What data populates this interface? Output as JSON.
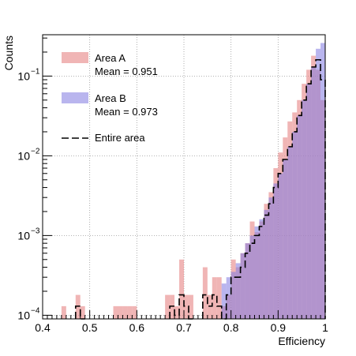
{
  "chart_data": {
    "type": "histogram",
    "xlabel": "Efficiency",
    "ylabel": "Counts",
    "xlim": [
      0.4,
      1.0
    ],
    "ylim": [
      9e-05,
      0.33
    ],
    "yscale": "log",
    "grid": true,
    "legend_position": "top-left",
    "bin_width": 0.01,
    "x_ticks": [
      "0.4",
      "0.5",
      "0.6",
      "0.7",
      "0.8",
      "0.9",
      "1"
    ],
    "y_ticks": [
      {
        "value": 0.0001,
        "base": "10",
        "exp": "−4"
      },
      {
        "value": 0.001,
        "base": "10",
        "exp": "−3"
      },
      {
        "value": 0.01,
        "base": "10",
        "exp": "−2"
      },
      {
        "value": 0.1,
        "base": "10",
        "exp": "−1"
      }
    ],
    "series": [
      {
        "name": "Area A",
        "mean_label": "Mean = 0.951",
        "color": "#e88e8e",
        "opacity": 0.65,
        "style": "filled",
        "bins": [
          [
            0.44,
            0.00013
          ],
          [
            0.47,
            0.00018
          ],
          [
            0.48,
            0.00013
          ],
          [
            0.55,
            0.00013
          ],
          [
            0.56,
            0.00013
          ],
          [
            0.57,
            0.00013
          ],
          [
            0.58,
            0.00013
          ],
          [
            0.59,
            0.00013
          ],
          [
            0.66,
            0.00018
          ],
          [
            0.67,
            0.00018
          ],
          [
            0.68,
            0.00013
          ],
          [
            0.69,
            0.0005
          ],
          [
            0.7,
            0.00018
          ],
          [
            0.71,
            0.00018
          ],
          [
            0.74,
            0.0004
          ],
          [
            0.75,
            0.00018
          ],
          [
            0.76,
            0.0003
          ],
          [
            0.77,
            0.0003
          ],
          [
            0.78,
            0.00013
          ],
          [
            0.79,
            0.00018
          ],
          [
            0.8,
            0.0005
          ],
          [
            0.81,
            0.0004
          ],
          [
            0.82,
            0.0006
          ],
          [
            0.83,
            0.0008
          ],
          [
            0.84,
            0.0015
          ],
          [
            0.85,
            0.0011
          ],
          [
            0.86,
            0.0015
          ],
          [
            0.87,
            0.0025
          ],
          [
            0.88,
            0.0035
          ],
          [
            0.89,
            0.007
          ],
          [
            0.9,
            0.011
          ],
          [
            0.91,
            0.017
          ],
          [
            0.92,
            0.027
          ],
          [
            0.93,
            0.035
          ],
          [
            0.94,
            0.05
          ],
          [
            0.95,
            0.08
          ],
          [
            0.96,
            0.12
          ],
          [
            0.97,
            0.18
          ],
          [
            0.98,
            0.12
          ],
          [
            0.99,
            0.05
          ]
        ]
      },
      {
        "name": "Area B",
        "mean_label": "Mean = 0.973",
        "color": "#7f78e0",
        "opacity": 0.55,
        "style": "filled",
        "bins": [
          [
            0.78,
            0.00025
          ],
          [
            0.79,
            0.0003
          ],
          [
            0.8,
            0.00035
          ],
          [
            0.81,
            0.00045
          ],
          [
            0.82,
            0.0006
          ],
          [
            0.83,
            0.0008
          ],
          [
            0.84,
            0.001
          ],
          [
            0.85,
            0.0013
          ],
          [
            0.86,
            0.0016
          ],
          [
            0.87,
            0.0021
          ],
          [
            0.88,
            0.003
          ],
          [
            0.89,
            0.0045
          ],
          [
            0.9,
            0.006
          ],
          [
            0.91,
            0.009
          ],
          [
            0.92,
            0.013
          ],
          [
            0.93,
            0.02
          ],
          [
            0.94,
            0.032
          ],
          [
            0.95,
            0.05
          ],
          [
            0.96,
            0.08
          ],
          [
            0.97,
            0.13
          ],
          [
            0.98,
            0.22
          ],
          [
            0.99,
            0.26
          ]
        ]
      },
      {
        "name": "Entire area",
        "color": "#000000",
        "style": "dashed-step",
        "bins": [
          [
            0.47,
            0.00013
          ],
          [
            0.48,
            9e-05
          ],
          [
            0.67,
            0.00013
          ],
          [
            0.68,
            0.0001
          ],
          [
            0.69,
            0.00018
          ],
          [
            0.7,
            0.00013
          ],
          [
            0.71,
            9e-05
          ],
          [
            0.74,
            0.00018
          ],
          [
            0.75,
            0.00013
          ],
          [
            0.76,
            0.00018
          ],
          [
            0.77,
            0.00013
          ],
          [
            0.78,
            9e-05
          ],
          [
            0.79,
            0.00018
          ],
          [
            0.8,
            0.0003
          ],
          [
            0.81,
            0.0003
          ],
          [
            0.82,
            0.0004
          ],
          [
            0.83,
            0.0006
          ],
          [
            0.84,
            0.0008
          ],
          [
            0.85,
            0.001
          ],
          [
            0.86,
            0.0013
          ],
          [
            0.87,
            0.0018
          ],
          [
            0.88,
            0.0025
          ],
          [
            0.89,
            0.004
          ],
          [
            0.9,
            0.006
          ],
          [
            0.91,
            0.009
          ],
          [
            0.92,
            0.013
          ],
          [
            0.93,
            0.02
          ],
          [
            0.94,
            0.032
          ],
          [
            0.95,
            0.05
          ],
          [
            0.96,
            0.08
          ],
          [
            0.97,
            0.13
          ],
          [
            0.98,
            0.16
          ],
          [
            0.99,
            0.09
          ]
        ]
      }
    ]
  }
}
